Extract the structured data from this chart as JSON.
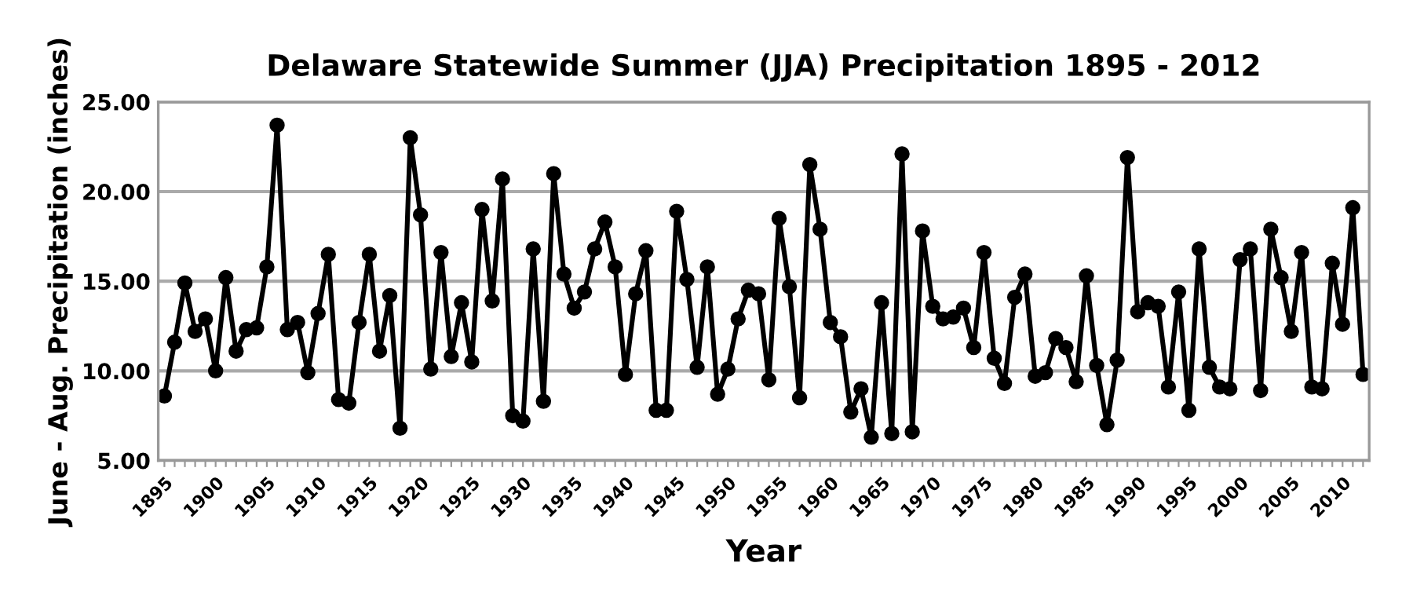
{
  "chart_data": {
    "type": "line",
    "title": "Delaware Statewide Summer (JJA) Precipitation 1895 - 2012",
    "xlabel": "Year",
    "ylabel": "June - Aug. Precipitation (inches)",
    "categories": [
      "1895",
      null,
      null,
      null,
      null,
      "1900",
      null,
      null,
      null,
      null,
      "1905",
      null,
      null,
      null,
      null,
      "1910",
      null,
      null,
      null,
      null,
      "1915",
      null,
      null,
      null,
      null,
      "1920",
      null,
      null,
      null,
      null,
      "1925",
      null,
      null,
      null,
      null,
      "1930",
      null,
      null,
      null,
      null,
      "1935",
      null,
      null,
      null,
      null,
      "1940",
      null,
      null,
      null,
      null,
      "1945",
      null,
      null,
      null,
      null,
      "1950",
      null,
      null,
      null,
      null,
      "1955",
      null,
      null,
      null,
      null,
      "1960",
      null,
      null,
      null,
      null,
      "1965",
      null,
      null,
      null,
      null,
      "1970",
      null,
      null,
      null,
      null,
      "1975",
      null,
      null,
      null,
      null,
      "1980",
      null,
      null,
      null,
      null,
      "1985",
      null,
      null,
      null,
      null,
      "1990",
      null,
      null,
      null,
      null,
      "1995",
      null,
      null,
      null,
      null,
      "2000",
      null,
      null,
      null,
      null,
      "2005",
      null,
      null,
      null,
      null,
      "2010",
      null,
      null
    ],
    "series": [
      {
        "color": "#000000",
        "values": [
          8.6,
          11.6,
          14.9,
          12.2,
          12.9,
          10.0,
          15.2,
          11.1,
          12.3,
          12.4,
          15.8,
          23.7,
          12.3,
          12.7,
          9.9,
          13.2,
          16.5,
          8.4,
          8.2,
          12.7,
          16.5,
          11.1,
          14.2,
          6.8,
          23.0,
          18.7,
          10.1,
          16.6,
          10.8,
          13.8,
          10.5,
          19.0,
          13.9,
          20.7,
          7.5,
          7.2,
          16.8,
          8.3,
          21.0,
          15.4,
          13.5,
          14.4,
          16.8,
          18.3,
          15.8,
          9.8,
          14.3,
          16.7,
          7.8,
          7.8,
          18.9,
          15.1,
          10.2,
          15.8,
          8.7,
          10.1,
          12.9,
          14.5,
          14.3,
          9.5,
          18.5,
          14.7,
          8.5,
          21.5,
          17.9,
          12.7,
          11.9,
          7.7,
          9.0,
          6.3,
          13.8,
          6.5,
          22.1,
          6.6,
          17.8,
          13.6,
          12.9,
          13.0,
          13.5,
          11.3,
          16.6,
          10.7,
          9.3,
          14.1,
          15.4,
          9.7,
          9.9,
          11.8,
          11.3,
          9.4,
          15.3,
          10.3,
          7.0,
          10.6,
          21.9,
          13.3,
          13.8,
          13.6,
          9.1,
          14.4,
          7.8,
          16.8,
          10.2,
          9.1,
          9.0,
          16.2,
          16.8,
          8.9,
          17.9,
          15.2,
          12.2,
          16.6,
          9.1,
          9.0,
          16.0,
          12.6,
          19.1,
          9.8
        ]
      }
    ],
    "ylim": [
      5,
      25
    ],
    "yticks": [
      {
        "value": 5,
        "label": "5.00"
      },
      {
        "value": 10,
        "label": "10.00"
      },
      {
        "value": 15,
        "label": "15.00"
      },
      {
        "value": 20,
        "label": "20.00"
      },
      {
        "value": 25,
        "label": "25.00"
      }
    ],
    "grid": "y",
    "marker": "circle",
    "line_style": "solid",
    "legend": false
  }
}
